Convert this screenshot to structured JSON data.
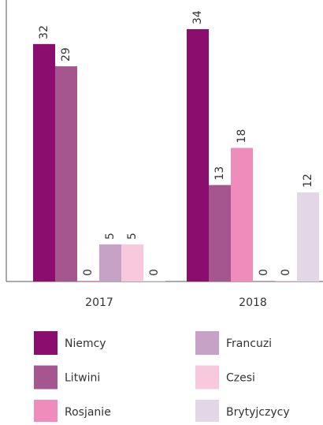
{
  "chart_data": {
    "type": "bar",
    "categories": [
      "2017",
      "2018"
    ],
    "series": [
      {
        "name": "Niemcy",
        "color": "#8b0e6f",
        "values": [
          32,
          34
        ]
      },
      {
        "name": "Litwini",
        "color": "#a5568f",
        "values": [
          29,
          13
        ]
      },
      {
        "name": "Rosjanie",
        "color": "#f08cbb",
        "values": [
          0,
          18
        ]
      },
      {
        "name": "Francuzi",
        "color": "#c6a3c6",
        "values": [
          5,
          0
        ]
      },
      {
        "name": "Czesi",
        "color": "#f8c8dd",
        "values": [
          5,
          0
        ]
      },
      {
        "name": "Brytyjczycy",
        "color": "#e3d6e7",
        "values": [
          0,
          12
        ]
      }
    ]
  }
}
